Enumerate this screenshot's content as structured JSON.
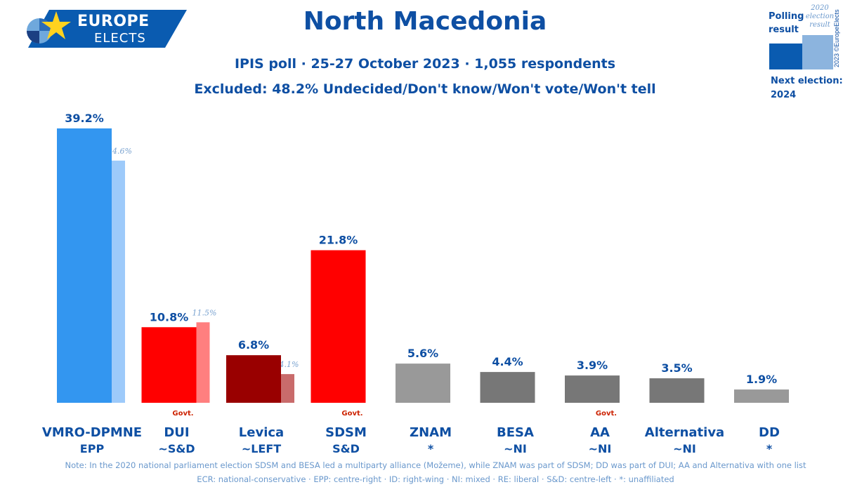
{
  "logo": {
    "line1": "EUROPE",
    "line2": "ELECTS"
  },
  "header": {
    "title": "North Macedonia",
    "subtitle": "IPIS poll · 25-27 October 2023 · 1,055 respondents",
    "excluded": "Excluded: 48.2% Undecided/Don't know/Won't vote/Won't tell"
  },
  "legend": {
    "current_label": "Polling result",
    "previous_label": "2020 election result",
    "next_election_label": "Next election:",
    "next_election_year": "2024",
    "current_color": "#0a5bb0",
    "previous_color": "#8cb4de"
  },
  "copyright": "2023 ©EuropeElects",
  "chart_data": {
    "type": "bar",
    "categories": [
      "VMRO-DPMNE",
      "DUI",
      "Levica",
      "SDSM",
      "ZNAM",
      "BESA",
      "AA",
      "Alternativa",
      "DD"
    ],
    "groups": [
      "EPP",
      "~S&D",
      "~LEFT",
      "S&D",
      "*",
      "~NI",
      "~NI",
      "~NI",
      "*"
    ],
    "series": [
      {
        "name": "Polling result",
        "values": [
          39.2,
          10.8,
          6.8,
          21.8,
          5.6,
          4.4,
          3.9,
          3.5,
          1.9
        ]
      },
      {
        "name": "2020 election result",
        "values": [
          34.6,
          11.5,
          4.1,
          null,
          null,
          null,
          null,
          null,
          null
        ]
      }
    ],
    "value_labels": [
      "39.2%",
      "10.8%",
      "6.8%",
      "21.8%",
      "5.6%",
      "4.4%",
      "3.9%",
      "3.5%",
      "1.9%"
    ],
    "previous_labels": [
      "34.6%",
      "11.5%",
      "4.1%",
      "",
      "",
      "",
      "",
      "",
      ""
    ],
    "colors": [
      "#3396f0",
      "#ff0000",
      "#990000",
      "#ff0000",
      "#999999",
      "#777777",
      "#777777",
      "#777777",
      "#999999"
    ],
    "previous_colors": [
      "#9dcafa",
      "#ff7f7f",
      "#c96b6b",
      "",
      "",
      "",
      "",
      "",
      ""
    ],
    "government": [
      false,
      true,
      false,
      true,
      false,
      false,
      true,
      false,
      false
    ],
    "govt_label": "Govt.",
    "ylim": [
      0,
      40
    ]
  },
  "footnotes": {
    "note": "Note: In the 2020 national parliament election SDSM and BESA led a multiparty alliance (Možeme), while ZNAM was part of SDSM; DD was part of DUI; AA and Alternativa with one list",
    "groups_legend": "ECR: national-conservative · EPP: centre-right · ID: right-wing · NI: mixed · RE: liberal · S&D: centre-left · *: unaffiliated"
  }
}
